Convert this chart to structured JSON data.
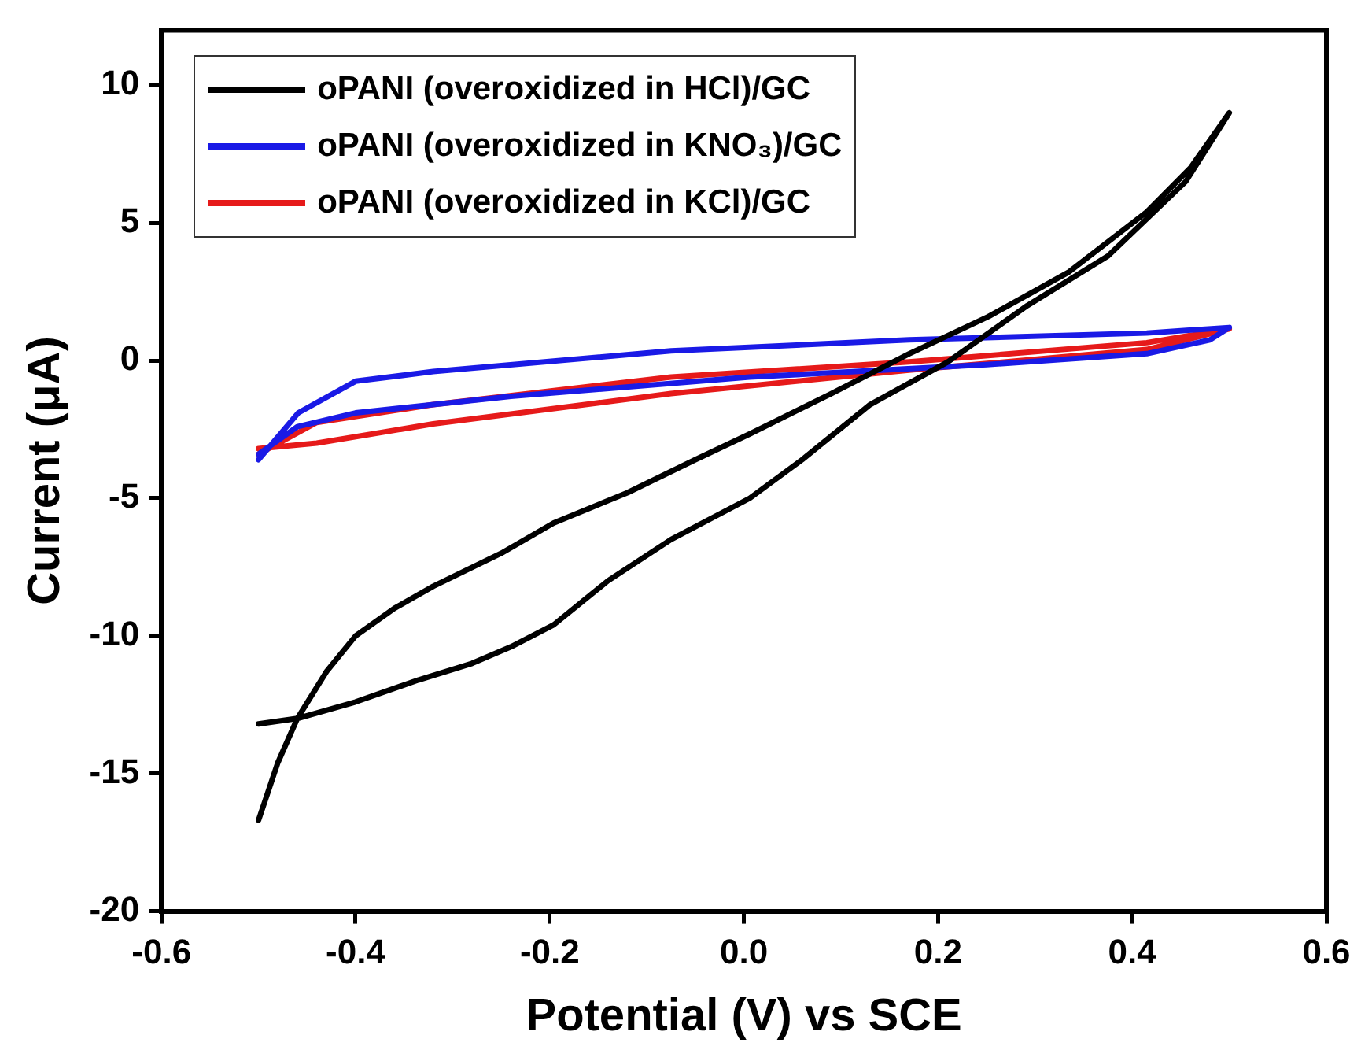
{
  "chart_data": {
    "type": "line",
    "xlabel": "Potential (V) vs SCE",
    "ylabel": "Current (μA)",
    "xlim": [
      -0.6,
      0.6
    ],
    "xticks": [
      -0.6,
      -0.4,
      -0.2,
      {
        "value": 0,
        "label": "0.0"
      },
      0.2,
      0.4,
      0.6
    ],
    "ylim": [
      -20,
      12
    ],
    "yticks": [
      -20,
      -15,
      -10,
      -5,
      0,
      5,
      10
    ],
    "grid": false,
    "legend": "top left",
    "marker": "none",
    "line_style": "solid",
    "series": [
      {
        "name": "oPANI (overoxidized in HCl)/GC",
        "color": "#000000",
        "x": [
          -0.5,
          -0.48,
          -0.46,
          -0.43,
          -0.4,
          -0.36,
          -0.32,
          -0.25,
          -0.196,
          -0.12,
          -0.05,
          0.007,
          0.09,
          0.17,
          0.252,
          0.334,
          0.415,
          0.46,
          0.5,
          0.455,
          0.375,
          0.292,
          0.21,
          0.13,
          0.06,
          0.006,
          -0.075,
          -0.14,
          -0.196,
          -0.24,
          -0.28,
          -0.335,
          -0.4,
          -0.46,
          -0.5
        ],
        "values": [
          -16.7,
          -14.6,
          -13.0,
          -11.3,
          -10.0,
          -9.0,
          -8.2,
          -7.0,
          -5.9,
          -4.8,
          -3.6,
          -2.65,
          -1.2,
          0.24,
          1.6,
          3.2,
          5.4,
          7.0,
          9.0,
          6.5,
          3.8,
          2.0,
          -0.05,
          -1.6,
          -3.6,
          -5.0,
          -6.5,
          -8.0,
          -9.6,
          -10.4,
          -11.0,
          -11.6,
          -12.4,
          -13.0,
          -13.2
        ]
      },
      {
        "name": "oPANI (overoxidized in KNO₃)/GC",
        "color": "#1a1ae6",
        "x": [
          -0.5,
          -0.459,
          -0.4,
          -0.32,
          -0.075,
          0.17,
          0.415,
          0.5,
          0.48,
          0.415,
          0.25,
          0.006,
          -0.24,
          -0.4,
          -0.46,
          -0.5
        ],
        "values": [
          -3.6,
          -1.9,
          -0.75,
          -0.4,
          0.35,
          0.75,
          1.0,
          1.2,
          0.75,
          0.25,
          -0.15,
          -0.6,
          -1.3,
          -1.9,
          -2.4,
          -3.4
        ]
      },
      {
        "name": "oPANI (overoxidized in KCl)/GC",
        "color": "#e61a1a",
        "x": [
          -0.5,
          -0.44,
          -0.32,
          -0.075,
          0.17,
          0.415,
          0.5,
          0.415,
          0.17,
          -0.075,
          -0.32,
          -0.44,
          -0.5
        ],
        "values": [
          -3.4,
          -2.25,
          -1.6,
          -0.6,
          -0.05,
          0.65,
          1.15,
          0.4,
          -0.35,
          -1.2,
          -2.3,
          -3.0,
          -3.2
        ]
      }
    ]
  }
}
